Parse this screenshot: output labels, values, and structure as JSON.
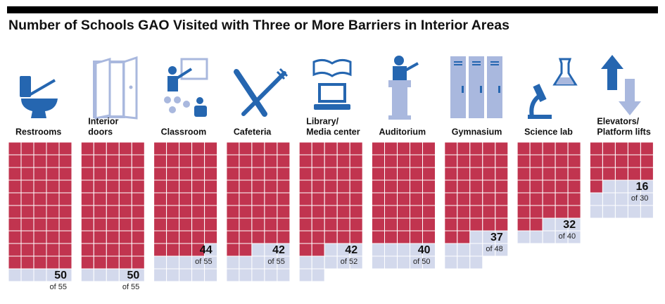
{
  "chart_data": {
    "type": "waffle",
    "title": "Number of Schools GAO Visited with Three or More Barriers in Interior Areas",
    "categories": [
      [
        "Restrooms"
      ],
      [
        "Interior",
        "doors"
      ],
      [
        "Classroom"
      ],
      [
        "Cafeteria"
      ],
      [
        "Library/",
        "Media center"
      ],
      [
        "Auditorium"
      ],
      [
        "Gymnasium"
      ],
      [
        "Science lab"
      ],
      [
        "Elevators/",
        "Platform lifts"
      ]
    ],
    "values": [
      50,
      50,
      44,
      42,
      42,
      40,
      37,
      32,
      16
    ],
    "totals": [
      55,
      55,
      55,
      55,
      52,
      50,
      48,
      40,
      30
    ],
    "total_labels": [
      "of 55",
      "of 55",
      "of 55",
      "of 55",
      "of 52",
      "of 50",
      "of 48",
      "of 40",
      "of 30"
    ],
    "color": "#c1344f",
    "empty_color": "#d3d9ec",
    "columns": 5
  }
}
